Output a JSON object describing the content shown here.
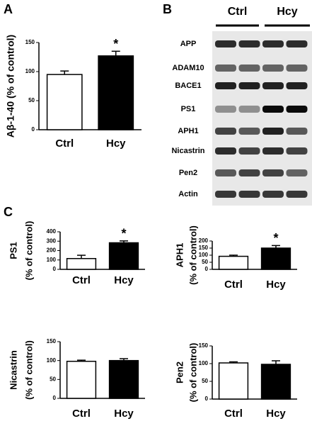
{
  "panels": [
    "A",
    "B",
    "C"
  ],
  "blot": {
    "groups": [
      "Ctrl",
      "Hcy"
    ],
    "proteins": [
      "APP",
      "ADAM10",
      "BACE1",
      "PS1",
      "APH1",
      "Nicastrin",
      "Pen2",
      "Actin"
    ]
  },
  "chart_data": [
    {
      "type": "bar",
      "ylabel": [
        "Aβ-1-40 (% of control)"
      ],
      "categories": [
        "Ctrl",
        "Hcy"
      ],
      "values": [
        95,
        127
      ],
      "errors": [
        6,
        8
      ],
      "colors": [
        "#ffffff",
        "#000000"
      ],
      "ylim": [
        0,
        150
      ],
      "yticks": [
        0,
        50,
        100,
        150
      ],
      "annotations": [
        {
          "category": "Hcy",
          "text": "*"
        }
      ]
    },
    {
      "type": "bar",
      "ylabel": [
        "PS1",
        "(% of control)"
      ],
      "categories": [
        "Ctrl",
        "Hcy"
      ],
      "values": [
        115,
        283
      ],
      "errors": [
        35,
        20
      ],
      "colors": [
        "#ffffff",
        "#000000"
      ],
      "ylim": [
        0,
        400
      ],
      "yticks": [
        0,
        100,
        200,
        300,
        400
      ],
      "annotations": [
        {
          "category": "Hcy",
          "text": "*"
        }
      ]
    },
    {
      "type": "bar",
      "ylabel": [
        "APH1",
        "(% of control)"
      ],
      "categories": [
        "Ctrl",
        "Hcy"
      ],
      "values": [
        92,
        150
      ],
      "errors": [
        8,
        18
      ],
      "colors": [
        "#ffffff",
        "#000000"
      ],
      "ylim": [
        0,
        200
      ],
      "yticks": [
        0,
        50,
        100,
        150,
        200
      ],
      "annotations": [
        {
          "category": "Hcy",
          "text": "*"
        }
      ]
    },
    {
      "type": "bar",
      "ylabel": [
        "Nicastrin",
        "(% of control)"
      ],
      "categories": [
        "Ctrl",
        "Hcy"
      ],
      "values": [
        98,
        100
      ],
      "errors": [
        3,
        5
      ],
      "colors": [
        "#ffffff",
        "#000000"
      ],
      "ylim": [
        0,
        150
      ],
      "yticks": [
        0,
        50,
        100,
        150
      ]
    },
    {
      "type": "bar",
      "ylabel": [
        "Pen2",
        "(% of control)"
      ],
      "categories": [
        "Ctrl",
        "Hcy"
      ],
      "values": [
        102,
        98
      ],
      "errors": [
        3,
        10
      ],
      "colors": [
        "#ffffff",
        "#000000"
      ],
      "ylim": [
        0,
        150
      ],
      "yticks": [
        0,
        50,
        100,
        150
      ]
    }
  ]
}
